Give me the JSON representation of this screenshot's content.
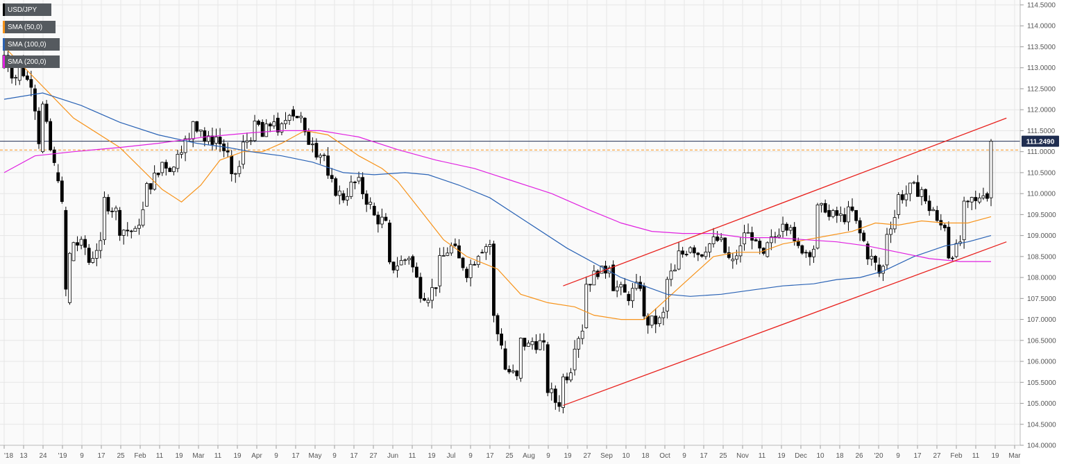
{
  "chart_data": {
    "type": "candlestick",
    "title": "",
    "symbol": "USD/JPY",
    "xlabel": "",
    "ylabel": "",
    "ylim": [
      104.0,
      114.5
    ],
    "y_ticks": [
      "114.5000",
      "114.0000",
      "113.5000",
      "113.0000",
      "112.5000",
      "112.0000",
      "111.5000",
      "111.0000",
      "110.5000",
      "110.0000",
      "109.5000",
      "109.0000",
      "108.5000",
      "108.0000",
      "107.5000",
      "107.0000",
      "106.5000",
      "106.0000",
      "105.5000",
      "105.0000",
      "104.5000",
      "104.0000"
    ],
    "x_ticks": [
      "'18",
      "13",
      "24",
      "'19",
      "9",
      "17",
      "25",
      "Feb",
      "11",
      "19",
      "Mar",
      "11",
      "19",
      "Apr",
      "9",
      "17",
      "May",
      "9",
      "17",
      "27",
      "Jun",
      "11",
      "19",
      "Jul",
      "9",
      "17",
      "25",
      "Aug",
      "9",
      "19",
      "27",
      "Sep",
      "10",
      "18",
      "Oct",
      "9",
      "17",
      "25",
      "Nov",
      "11",
      "19",
      "Dec",
      "10",
      "18",
      "26",
      "'20",
      "9",
      "17",
      "27",
      "Feb",
      "11",
      "19",
      "Mar"
    ],
    "legend": [
      "USD/JPY",
      "SMA (50,0)",
      "SMA (100,0)",
      "SMA (200,0)"
    ],
    "legend_placement": "top-left",
    "last_price": "111.2490",
    "grid": true,
    "price_line": 111.249,
    "dashed_level": 111.04,
    "colors": {
      "bull": "#ffffff",
      "bear": "#000000",
      "sma50": "#f7931a",
      "sma100": "#2962b5",
      "sma200": "#e020e0",
      "channel": "#e8201c",
      "grid": "#e6e6e6",
      "price_line": "#1f2d50",
      "dashed": "#f7931a"
    },
    "x_range": [
      0,
      256
    ],
    "anchors": [
      [
        0,
        113.0,
        113.5
      ],
      [
        4,
        112.7,
        113.3
      ],
      [
        8,
        112.5,
        113.2
      ],
      [
        10,
        111.0,
        112.6
      ],
      [
        14,
        110.5,
        111.3
      ],
      [
        16,
        109.6,
        110.5
      ],
      [
        17,
        107.4,
        110.0
      ],
      [
        18,
        108.4,
        108.9
      ],
      [
        22,
        108.7,
        108.2
      ],
      [
        26,
        108.9,
        109.9
      ],
      [
        30,
        109.6,
        109.2
      ],
      [
        34,
        109.1,
        108.7
      ],
      [
        37,
        109.7,
        110.0
      ],
      [
        41,
        110.5,
        110.8
      ],
      [
        45,
        110.6,
        111.0
      ],
      [
        49,
        111.3,
        111.9
      ],
      [
        52,
        111.5,
        111.3
      ],
      [
        55,
        111.2,
        111.5
      ],
      [
        59,
        110.9,
        110.1
      ],
      [
        62,
        110.7,
        111.0
      ],
      [
        67,
        111.7,
        111.2
      ],
      [
        71,
        111.8,
        111.1
      ],
      [
        75,
        112.0,
        112.0
      ],
      [
        78,
        111.8,
        111.4
      ],
      [
        81,
        111.2,
        111.1
      ],
      [
        84,
        110.9,
        110.4
      ],
      [
        88,
        110.0,
        109.8
      ],
      [
        92,
        110.3,
        110.4
      ],
      [
        96,
        109.7,
        109.5
      ],
      [
        100,
        109.3,
        108.2
      ],
      [
        103,
        108.3,
        108.3
      ],
      [
        106,
        108.5,
        108.5
      ],
      [
        110,
        107.4,
        107.5
      ],
      [
        113,
        107.8,
        108.2
      ],
      [
        117,
        108.8,
        108.8
      ],
      [
        120,
        108.2,
        108.0
      ],
      [
        124,
        108.6,
        108.7
      ],
      [
        127,
        108.8,
        107.4
      ],
      [
        130,
        106.3,
        105.9
      ],
      [
        134,
        105.6,
        106.5
      ],
      [
        137,
        106.4,
        106.5
      ],
      [
        141,
        106.4,
        105.5
      ],
      [
        145,
        104.9,
        105.5
      ],
      [
        148,
        105.8,
        106.3
      ],
      [
        151,
        106.8,
        107.8
      ],
      [
        155,
        108.1,
        108.0
      ],
      [
        158,
        108.3,
        107.9
      ],
      [
        162,
        107.6,
        107.5
      ],
      [
        166,
        107.8,
        107.0
      ],
      [
        170,
        106.9,
        106.7
      ],
      [
        172,
        107.2,
        107.8
      ],
      [
        175,
        108.2,
        108.5
      ],
      [
        178,
        108.6,
        108.9
      ],
      [
        182,
        108.5,
        108.7
      ],
      [
        186,
        108.9,
        109.0
      ],
      [
        189,
        108.4,
        108.1
      ],
      [
        192,
        108.8,
        109.2
      ],
      [
        195,
        108.9,
        108.8
      ],
      [
        198,
        108.5,
        108.6
      ],
      [
        202,
        109.1,
        109.5
      ],
      [
        205,
        109.2,
        108.8
      ],
      [
        208,
        108.6,
        108.6
      ],
      [
        211,
        108.7,
        109.6
      ],
      [
        214,
        109.6,
        109.4
      ],
      [
        218,
        109.5,
        109.4
      ],
      [
        221,
        109.6,
        109.5
      ],
      [
        224,
        108.8,
        108.7
      ],
      [
        227,
        108.3,
        107.9
      ],
      [
        229,
        108.3,
        108.9
      ],
      [
        232,
        109.5,
        109.9
      ],
      [
        235,
        110.0,
        110.1
      ],
      [
        239,
        110.1,
        109.8
      ],
      [
        242,
        109.6,
        109.3
      ],
      [
        245,
        109.2,
        108.6
      ],
      [
        247,
        108.5,
        108.4
      ],
      [
        249,
        108.9,
        109.5
      ],
      [
        251,
        109.8,
        109.9
      ],
      [
        253,
        109.8,
        109.9
      ],
      [
        255,
        110.0,
        109.9
      ],
      [
        256,
        109.9,
        111.25
      ]
    ],
    "sma50": [
      [
        0,
        113.5
      ],
      [
        18,
        111.8
      ],
      [
        30,
        111.1
      ],
      [
        41,
        110.1
      ],
      [
        46,
        109.8
      ],
      [
        51,
        110.2
      ],
      [
        56,
        110.8
      ],
      [
        62,
        111.0
      ],
      [
        67,
        111.0
      ],
      [
        72,
        111.2
      ],
      [
        78,
        111.5
      ],
      [
        84,
        111.4
      ],
      [
        92,
        110.9
      ],
      [
        98,
        110.6
      ],
      [
        102,
        110.3
      ],
      [
        108,
        109.6
      ],
      [
        114,
        108.9
      ],
      [
        120,
        108.5
      ],
      [
        128,
        108.2
      ],
      [
        134,
        107.6
      ],
      [
        141,
        107.4
      ],
      [
        148,
        107.3
      ],
      [
        153,
        107.1
      ],
      [
        160,
        107.0
      ],
      [
        166,
        107.0
      ],
      [
        172,
        107.5
      ],
      [
        178,
        108.0
      ],
      [
        184,
        108.5
      ],
      [
        190,
        108.6
      ],
      [
        196,
        108.6
      ],
      [
        202,
        108.8
      ],
      [
        208,
        108.9
      ],
      [
        214,
        109.0
      ],
      [
        220,
        109.1
      ],
      [
        226,
        109.3
      ],
      [
        232,
        109.25
      ],
      [
        238,
        109.35
      ],
      [
        244,
        109.3
      ],
      [
        250,
        109.3
      ],
      [
        256,
        109.45
      ]
    ],
    "sma100": [
      [
        0,
        112.25
      ],
      [
        10,
        112.4
      ],
      [
        20,
        112.1
      ],
      [
        30,
        111.7
      ],
      [
        40,
        111.4
      ],
      [
        50,
        111.2
      ],
      [
        58,
        111.1
      ],
      [
        64,
        111.0
      ],
      [
        72,
        110.9
      ],
      [
        80,
        110.75
      ],
      [
        88,
        110.5
      ],
      [
        96,
        110.45
      ],
      [
        104,
        110.5
      ],
      [
        110,
        110.45
      ],
      [
        118,
        110.2
      ],
      [
        126,
        109.9
      ],
      [
        136,
        109.3
      ],
      [
        146,
        108.7
      ],
      [
        154,
        108.3
      ],
      [
        160,
        108.0
      ],
      [
        166,
        107.8
      ],
      [
        172,
        107.6
      ],
      [
        178,
        107.55
      ],
      [
        186,
        107.6
      ],
      [
        194,
        107.7
      ],
      [
        202,
        107.8
      ],
      [
        210,
        107.85
      ],
      [
        216,
        107.95
      ],
      [
        222,
        108.0
      ],
      [
        228,
        108.15
      ],
      [
        236,
        108.5
      ],
      [
        244,
        108.75
      ],
      [
        250,
        108.85
      ],
      [
        256,
        109.0
      ]
    ],
    "sma200": [
      [
        0,
        110.5
      ],
      [
        8,
        110.9
      ],
      [
        18,
        111.0
      ],
      [
        30,
        111.1
      ],
      [
        40,
        111.2
      ],
      [
        52,
        111.35
      ],
      [
        64,
        111.45
      ],
      [
        72,
        111.5
      ],
      [
        82,
        111.5
      ],
      [
        92,
        111.35
      ],
      [
        102,
        111.05
      ],
      [
        112,
        110.8
      ],
      [
        122,
        110.6
      ],
      [
        132,
        110.3
      ],
      [
        142,
        110.0
      ],
      [
        152,
        109.6
      ],
      [
        160,
        109.3
      ],
      [
        168,
        109.1
      ],
      [
        176,
        109.05
      ],
      [
        184,
        109.05
      ],
      [
        192,
        108.95
      ],
      [
        200,
        108.95
      ],
      [
        208,
        108.9
      ],
      [
        216,
        108.85
      ],
      [
        224,
        108.75
      ],
      [
        232,
        108.6
      ],
      [
        240,
        108.45
      ],
      [
        248,
        108.38
      ],
      [
        256,
        108.38
      ]
    ],
    "channel_upper": [
      [
        145,
        107.8
      ],
      [
        260,
        111.8
      ]
    ],
    "channel_lower": [
      [
        145,
        104.95
      ],
      [
        260,
        108.85
      ]
    ]
  }
}
